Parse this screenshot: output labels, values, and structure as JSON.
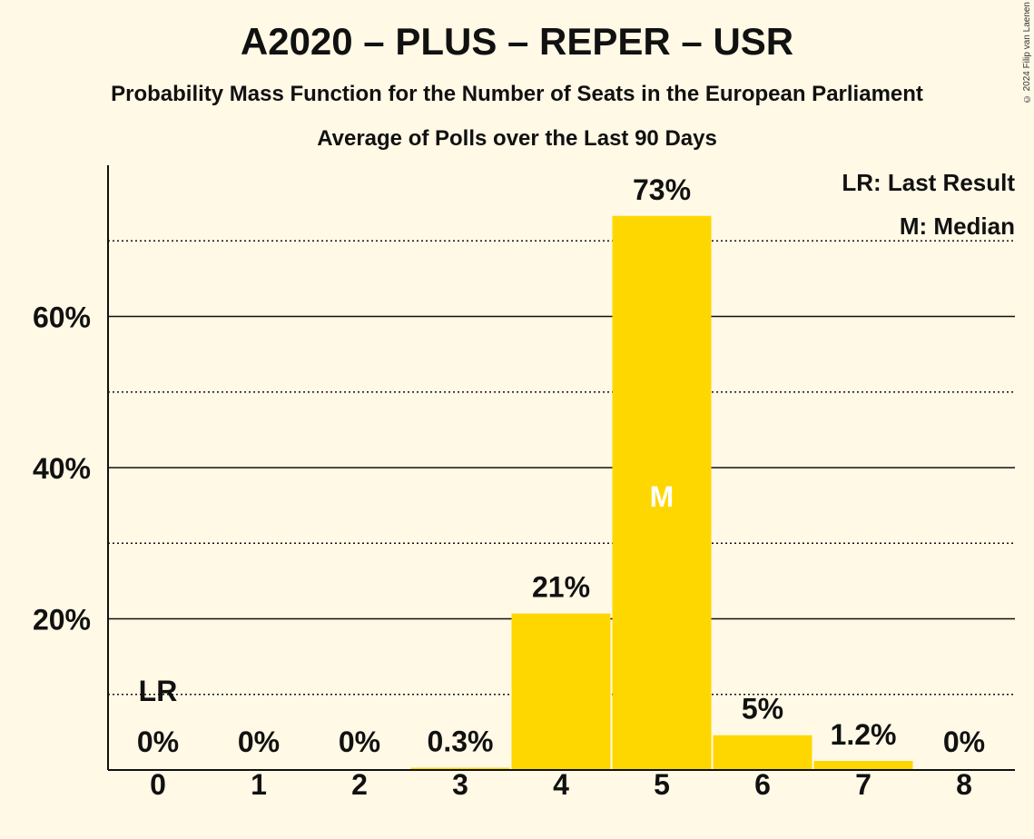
{
  "chart_data": {
    "type": "bar",
    "title": "A2020 – PLUS – REPER – USR",
    "subtitle": "Probability Mass Function for the Number of Seats in the European Parliament",
    "subtitle2": "Average of Polls over the Last 90 Days",
    "categories": [
      "0",
      "1",
      "2",
      "3",
      "4",
      "5",
      "6",
      "7",
      "8"
    ],
    "values": [
      0,
      0,
      0,
      0.3,
      20.7,
      73.3,
      4.6,
      1.2,
      0
    ],
    "value_labels": [
      "0%",
      "0%",
      "0%",
      "0.3%",
      "21%",
      "73%",
      "5%",
      "1.2%",
      "0%"
    ],
    "ylim": [
      0,
      80
    ],
    "yticks": [
      20,
      40,
      60
    ],
    "ytick_labels": [
      "20%",
      "40%",
      "60%"
    ],
    "minor_gridlines": [
      10,
      30,
      50,
      70
    ],
    "bar_color": "#ffd700",
    "last_result_index": 0,
    "last_result_marker": "LR",
    "median_index": 5,
    "median_marker": "M",
    "legend": [
      "LR: Last Result",
      "M: Median"
    ],
    "legend_position": "top-right",
    "copyright": "© 2024 Filip van Laenen"
  }
}
